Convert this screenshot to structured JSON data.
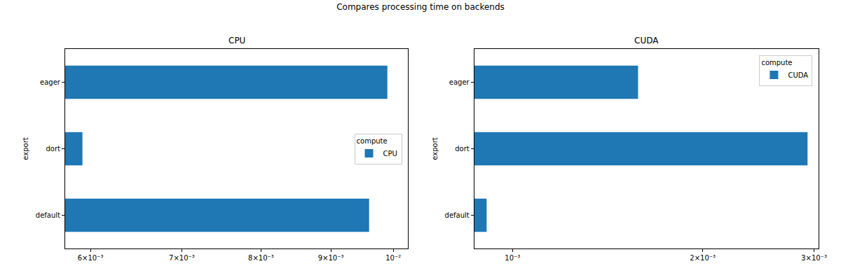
{
  "title": "Compares processing time on backends",
  "chart_data": [
    {
      "type": "bar",
      "orientation": "horizontal",
      "log": "x",
      "title": "CPU",
      "y_label": "export",
      "categories": [
        "default",
        "dort",
        "eager"
      ],
      "series": [
        {
          "name": "CPU",
          "color": "#1f77b4",
          "values": [
            0.0096,
            0.00592,
            0.0099
          ]
        }
      ],
      "xlim": [
        0.00575,
        0.01025
      ],
      "xticks": [
        {
          "value": 0.006,
          "label": "6×10⁻³"
        },
        {
          "value": 0.007,
          "label": "7×10⁻³"
        },
        {
          "value": 0.008,
          "label": "8×10⁻³"
        },
        {
          "value": 0.009,
          "label": "9×10⁻³"
        },
        {
          "value": 0.01,
          "label": "10⁻²"
        }
      ],
      "legend": "center right",
      "legend_title": "compute",
      "grid": false
    },
    {
      "type": "bar",
      "orientation": "horizontal",
      "log": "x",
      "title": "CUDA",
      "y_label": "export",
      "categories": [
        "default",
        "dort",
        "eager"
      ],
      "series": [
        {
          "name": "CUDA",
          "color": "#1f77b4",
          "values": [
            0.00091,
            0.00293,
            0.00158
          ]
        }
      ],
      "xlim": [
        0.00087,
        0.00305
      ],
      "xticks": [
        {
          "value": 0.001,
          "label": "10⁻³"
        },
        {
          "value": 0.002,
          "label": "2×10⁻³"
        },
        {
          "value": 0.003,
          "label": "3×10⁻³"
        }
      ],
      "legend": "upper right",
      "legend_title": "compute",
      "grid": false
    }
  ]
}
